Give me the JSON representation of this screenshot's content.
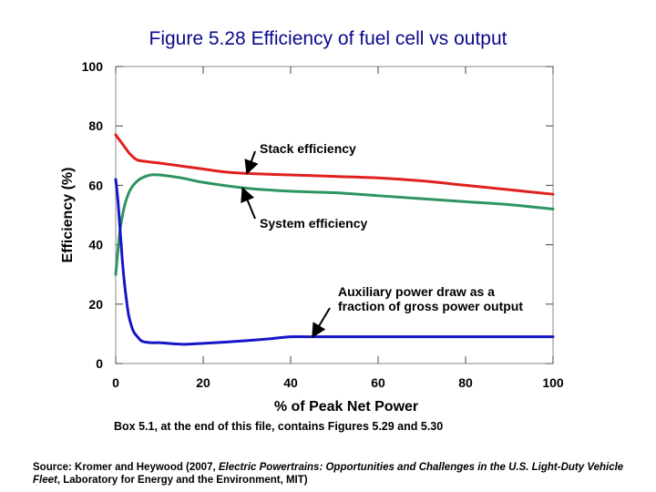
{
  "chart_data": {
    "type": "line",
    "title": "Figure 5.28 Efficiency of fuel cell vs output",
    "xlabel": "% of Peak Net Power",
    "ylabel": "Efficiency (%)",
    "xlim": [
      0,
      100
    ],
    "ylim": [
      0,
      100
    ],
    "xticks": [
      0,
      20,
      40,
      60,
      80,
      100
    ],
    "yticks": [
      0,
      20,
      40,
      60,
      80,
      100
    ],
    "grid": false,
    "series": [
      {
        "name": "Stack efficiency",
        "color": "#e0201e",
        "x": [
          0,
          1,
          2,
          3,
          4,
          5,
          7,
          10,
          15,
          20,
          25,
          30,
          40,
          50,
          60,
          70,
          80,
          90,
          100
        ],
        "y": [
          77,
          75,
          73,
          71,
          69.5,
          68.5,
          68,
          67.5,
          66.5,
          65.5,
          64.5,
          64,
          63.5,
          63,
          62.5,
          61.5,
          60,
          58.5,
          57
        ]
      },
      {
        "name": "System efficiency",
        "color": "#2e9460",
        "x": [
          0,
          1,
          2,
          3,
          4,
          5,
          6,
          8,
          10,
          15,
          20,
          30,
          40,
          50,
          60,
          70,
          80,
          90,
          100
        ],
        "y": [
          30,
          45,
          53,
          57.5,
          60,
          61.5,
          62.5,
          63.5,
          63.5,
          62.5,
          61,
          59,
          58,
          57.5,
          56.5,
          55.5,
          54.5,
          53.5,
          52
        ]
      },
      {
        "name": "Auxiliary power draw as a fraction of gross power output",
        "color": "#1616c8",
        "x": [
          0,
          0.5,
          1,
          1.5,
          2,
          2.5,
          3,
          4,
          5,
          6,
          8,
          10,
          15,
          20,
          25,
          30,
          35,
          40,
          45,
          50,
          60,
          70,
          80,
          90,
          100
        ],
        "y": [
          62,
          55,
          45,
          35,
          27,
          21,
          16,
          11,
          9,
          7.5,
          7,
          7,
          6.5,
          6.8,
          7.2,
          7.7,
          8.3,
          9,
          9,
          9,
          9,
          9,
          9,
          9,
          9
        ]
      }
    ],
    "annotations": [
      {
        "text": "Stack efficiency",
        "target": [
          30,
          64
        ]
      },
      {
        "text": "System efficiency",
        "target": [
          29,
          59
        ]
      },
      {
        "lines": [
          "Auxiliary power draw as a",
          "fraction of gross power output"
        ],
        "target": [
          45,
          9
        ]
      }
    ]
  },
  "notes": {
    "box": "Box 5.1, at the end of this file, contains Figures 5.29 and 5.30",
    "source_prefix": "Source: Kromer and Heywood (2007, ",
    "source_italic_1": "Electric Powertrains: Opportunities and Challenges in the U.S. Light-Duty Vehicle Fleet",
    "source_suffix": ", Laboratory for Energy and the Environment, MIT)"
  }
}
